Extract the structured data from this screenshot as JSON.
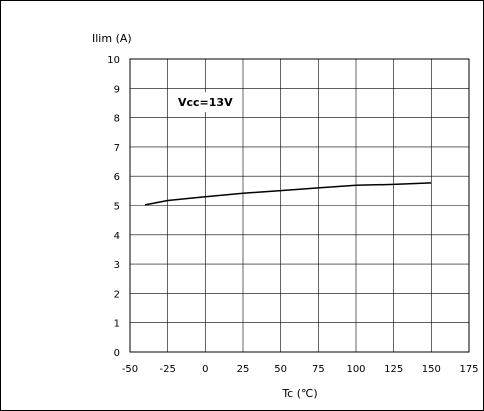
{
  "chart_data": {
    "type": "line",
    "ylabel": "Ilim (A)",
    "xlabel": "Tc (℃)",
    "annotation": "Vcc=13V",
    "xlim": [
      -50,
      175
    ],
    "ylim": [
      0,
      10
    ],
    "xticks": [
      -50,
      -25,
      0,
      25,
      50,
      75,
      100,
      125,
      150,
      175
    ],
    "yticks": [
      0,
      1,
      2,
      3,
      4,
      5,
      6,
      7,
      8,
      9,
      10
    ],
    "grid": true,
    "series": [
      {
        "x": [
          -40,
          -25,
          0,
          25,
          50,
          75,
          100,
          125,
          150
        ],
        "y": [
          5.02,
          5.17,
          5.3,
          5.42,
          5.51,
          5.6,
          5.69,
          5.72,
          5.77
        ]
      }
    ],
    "line_color": "#000000"
  }
}
